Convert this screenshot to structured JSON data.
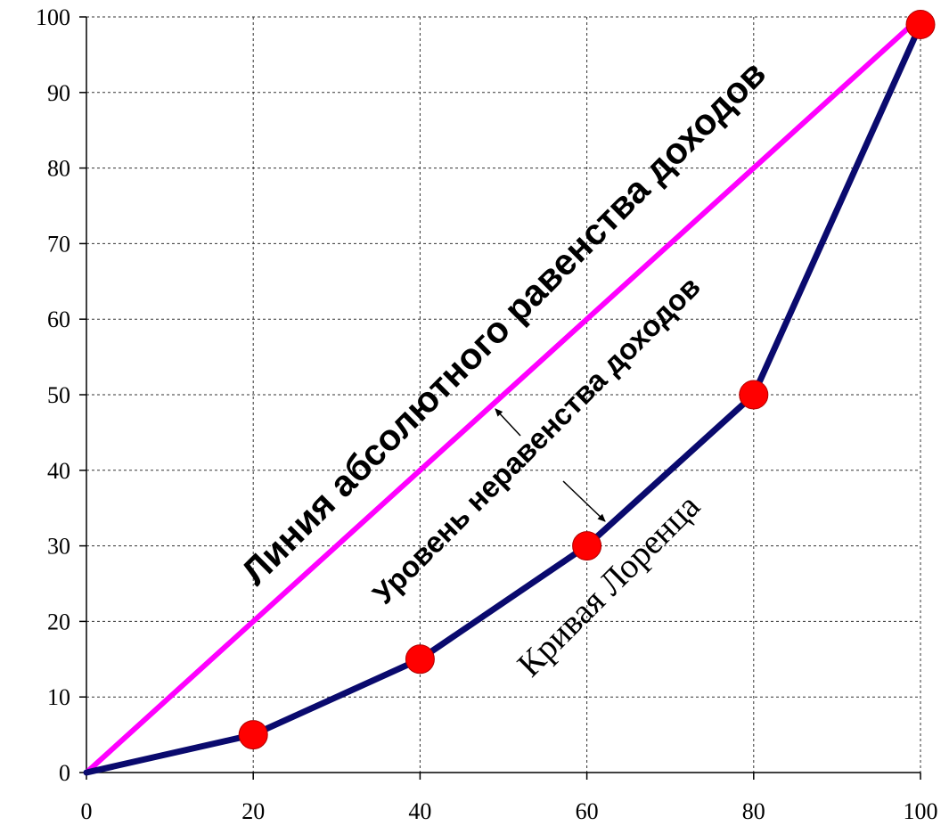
{
  "chart_data": {
    "type": "line",
    "title": "",
    "xlabel": "",
    "ylabel": "",
    "xlim": [
      0,
      100
    ],
    "ylim": [
      0,
      100
    ],
    "x_ticks": [
      0,
      20,
      40,
      60,
      80,
      100
    ],
    "y_ticks": [
      0,
      10,
      20,
      30,
      40,
      50,
      60,
      70,
      80,
      90,
      100
    ],
    "x_tick_labels": [
      "0",
      "20",
      "40",
      "60",
      "80",
      "100"
    ],
    "y_tick_labels": [
      "0",
      "10",
      "20",
      "30",
      "40",
      "50",
      "60",
      "70",
      "80",
      "90",
      "100"
    ],
    "grid": true,
    "legend": "none",
    "series": [
      {
        "key": "equality",
        "color": "#ff00ff",
        "x": [
          0,
          100
        ],
        "y": [
          0,
          100
        ],
        "markers": false
      },
      {
        "key": "lorenz",
        "color": "#0a0a6e",
        "x": [
          0,
          20,
          40,
          60,
          80,
          100
        ],
        "y": [
          0,
          5,
          15,
          30,
          50,
          99
        ],
        "markers": true,
        "marker_color": "#ff0000"
      }
    ],
    "annotations": [
      {
        "id": "equality",
        "text": "Линия абсолютного равенства доходов"
      },
      {
        "id": "inequality",
        "text": "Уровень неравенства доходов"
      },
      {
        "id": "lorenz",
        "text": "Кривая Лоренца"
      }
    ]
  }
}
